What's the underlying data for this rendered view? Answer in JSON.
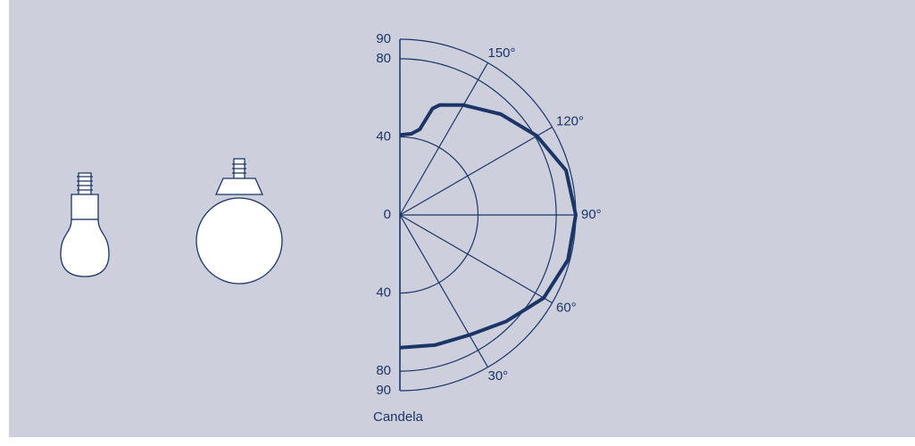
{
  "chart_data": {
    "type": "polar",
    "axis_label": "Candela",
    "rlim": [
      0,
      90
    ],
    "rticks": [
      0,
      40,
      80,
      90
    ],
    "thetalim": [
      0,
      180
    ],
    "thetaticks": [
      {
        "value": 30,
        "label": "30°"
      },
      {
        "value": 60,
        "label": "60°"
      },
      {
        "value": 90,
        "label": "90°"
      },
      {
        "value": 120,
        "label": "120°"
      },
      {
        "value": 150,
        "label": "150°"
      }
    ],
    "grid": true,
    "series": [
      {
        "color": "#1a3566",
        "x": [
          0,
          15,
          30,
          45,
          60,
          75,
          90,
          105,
          120,
          135,
          150,
          160,
          163,
          167,
          172,
          180
        ],
        "values": [
          68,
          69,
          71,
          77,
          85,
          89,
          90,
          88,
          81,
          73,
          65,
          60,
          57,
          45,
          42,
          41
        ]
      }
    ]
  }
}
